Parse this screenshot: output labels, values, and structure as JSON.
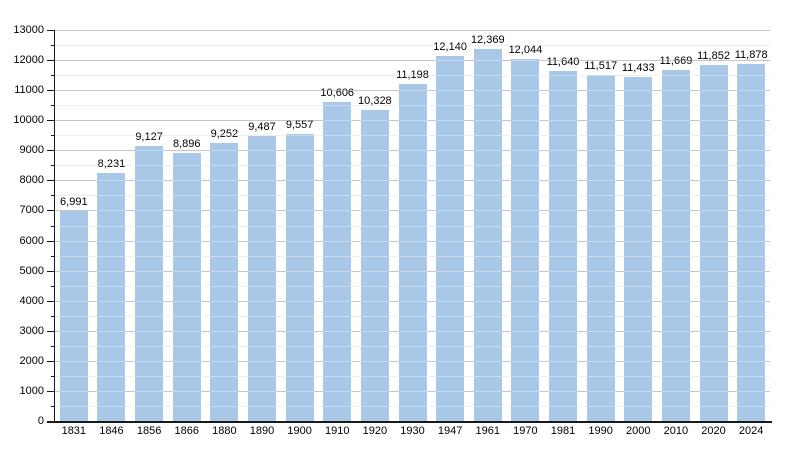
{
  "chart_data": {
    "type": "bar",
    "title": "",
    "xlabel": "",
    "ylabel": "",
    "categories": [
      "1831",
      "1846",
      "1856",
      "1866",
      "1880",
      "1890",
      "1900",
      "1910",
      "1920",
      "1930",
      "1947",
      "1961",
      "1970",
      "1981",
      "1990",
      "2000",
      "2010",
      "2020",
      "2024"
    ],
    "values": [
      6991,
      8231,
      9127,
      8896,
      9252,
      9487,
      9557,
      10606,
      10328,
      11198,
      12140,
      12369,
      12044,
      11640,
      11517,
      11433,
      11669,
      11852,
      11878
    ],
    "value_labels": [
      "6,991",
      "8,231",
      "9,127",
      "8,896",
      "9,252",
      "9,487",
      "9,557",
      "10,606",
      "10,328",
      "11,198",
      "12,140",
      "12,369",
      "12,044",
      "11,640",
      "11,517",
      "11,433",
      "11,669",
      "11,852",
      "11,878"
    ],
    "ylim": [
      0,
      13000
    ],
    "ytick_step": 1000,
    "ytick_labels": [
      "0",
      "1000",
      "2000",
      "3000",
      "4000",
      "5000",
      "6000",
      "7000",
      "8000",
      "9000",
      "10000",
      "11000",
      "12000",
      "13000"
    ],
    "minor_tick_step": 500,
    "grid": true,
    "legend": false,
    "colors": {
      "bar_fill": "#a9c7e6",
      "major_gridline": "#a8a8a8",
      "minor_gridline": "#e6e6e6",
      "axis": "#1a1a1a",
      "text": "#000000",
      "background": "#ffffff"
    }
  }
}
